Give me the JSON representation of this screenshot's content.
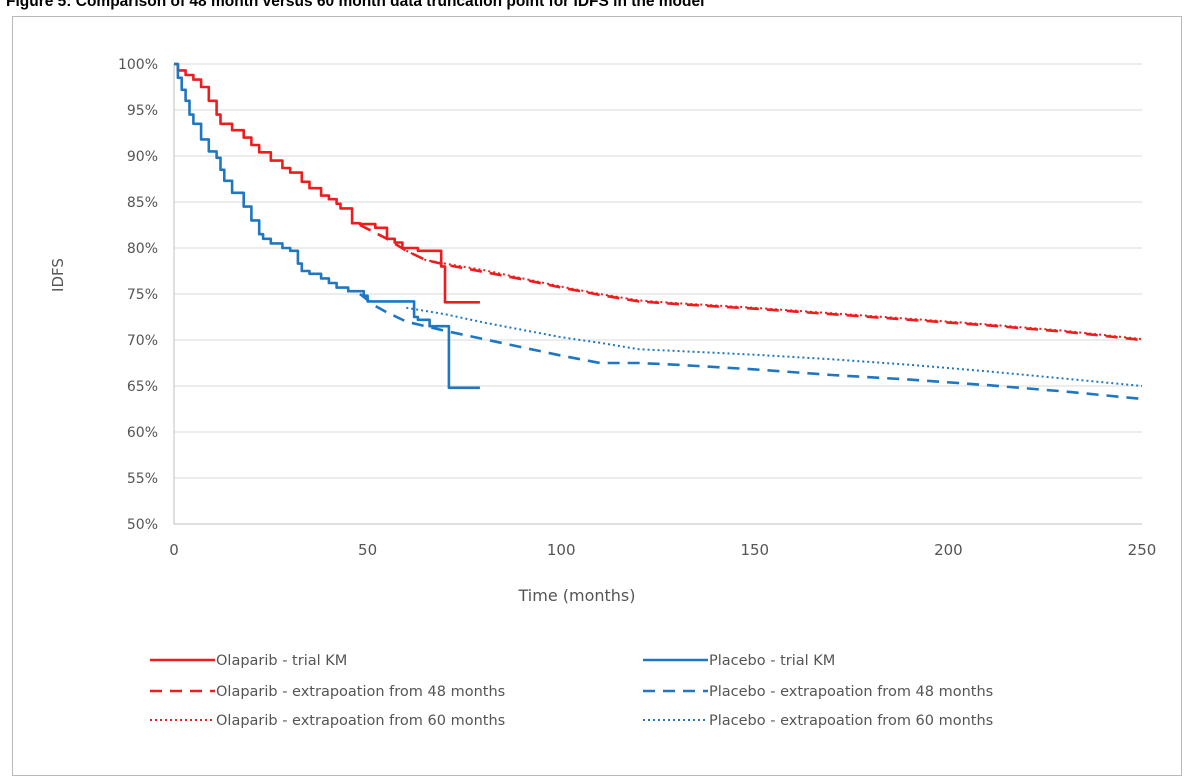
{
  "figure_title": "Figure 5: Comparison of 48 month versus 60 month data truncation point for IDFS in the model",
  "colors": {
    "olaparib": "#ee1c1c",
    "placebo": "#1f77c1",
    "grid": "#d9d9d9",
    "axis_text": "#595959"
  },
  "chart_data": {
    "type": "line",
    "title": "",
    "xlabel": "Time (months)",
    "ylabel": "IDFS",
    "xlim": [
      0,
      250
    ],
    "ylim": [
      0.5,
      1.0
    ],
    "x_ticks": [
      "0",
      "50",
      "100",
      "150",
      "200",
      "250"
    ],
    "y_ticks": [
      "50%",
      "55%",
      "60%",
      "65%",
      "70%",
      "75%",
      "80%",
      "85%",
      "90%",
      "95%",
      "100%"
    ],
    "grid": "horizontal",
    "legend_position": "bottom",
    "series": [
      {
        "name": "Olaparib - trial KM",
        "color": "olaparib",
        "dash": "solid",
        "step": true,
        "x": [
          0,
          1,
          3,
          5,
          7,
          9,
          11,
          12,
          15,
          18,
          20,
          22,
          25,
          28,
          30,
          33,
          35,
          38,
          40,
          42,
          43,
          45,
          46,
          48,
          50,
          52,
          55,
          57,
          59,
          61,
          63,
          65,
          66,
          67,
          68,
          69,
          70,
          72,
          79
        ],
        "y": [
          1.0,
          0.993,
          0.988,
          0.983,
          0.975,
          0.96,
          0.945,
          0.935,
          0.928,
          0.92,
          0.912,
          0.904,
          0.895,
          0.887,
          0.882,
          0.872,
          0.865,
          0.857,
          0.853,
          0.848,
          0.843,
          0.843,
          0.827,
          0.826,
          0.826,
          0.822,
          0.81,
          0.806,
          0.8,
          0.8,
          0.797,
          0.797,
          0.797,
          0.797,
          0.797,
          0.78,
          0.741,
          0.741,
          0.741
        ]
      },
      {
        "name": "Placebo - trial KM",
        "color": "placebo",
        "dash": "solid",
        "step": true,
        "x": [
          0,
          1,
          2,
          3,
          4,
          5,
          7,
          9,
          11,
          12,
          13,
          15,
          18,
          20,
          22,
          23,
          25,
          28,
          30,
          32,
          33,
          35,
          38,
          40,
          42,
          45,
          47,
          49,
          50,
          52,
          55,
          57,
          60,
          62,
          63,
          65,
          66,
          68,
          70,
          71,
          72,
          74,
          79
        ],
        "y": [
          1.0,
          0.985,
          0.972,
          0.96,
          0.945,
          0.935,
          0.918,
          0.905,
          0.898,
          0.885,
          0.873,
          0.86,
          0.845,
          0.83,
          0.815,
          0.81,
          0.805,
          0.8,
          0.797,
          0.783,
          0.775,
          0.772,
          0.767,
          0.762,
          0.757,
          0.753,
          0.753,
          0.748,
          0.742,
          0.742,
          0.742,
          0.742,
          0.742,
          0.725,
          0.722,
          0.722,
          0.715,
          0.715,
          0.715,
          0.648,
          0.648,
          0.648,
          0.648
        ]
      },
      {
        "name": "Olaparib - extrapoation from 48 months",
        "color": "olaparib",
        "dash": "dash",
        "step": false,
        "x": [
          48,
          55,
          60,
          65,
          70,
          80,
          90,
          100,
          110,
          120,
          130,
          150,
          170,
          190,
          210,
          230,
          250
        ],
        "y": [
          0.825,
          0.81,
          0.797,
          0.787,
          0.782,
          0.774,
          0.766,
          0.757,
          0.749,
          0.742,
          0.739,
          0.734,
          0.728,
          0.722,
          0.716,
          0.709,
          0.7
        ]
      },
      {
        "name": "Placebo - extrapoation from 48 months",
        "color": "placebo",
        "dash": "dash",
        "step": false,
        "x": [
          48,
          52,
          55,
          60,
          70,
          80,
          90,
          100,
          110,
          120,
          130,
          150,
          170,
          190,
          210,
          230,
          250
        ],
        "y": [
          0.75,
          0.737,
          0.73,
          0.72,
          0.71,
          0.701,
          0.692,
          0.683,
          0.675,
          0.675,
          0.673,
          0.668,
          0.662,
          0.657,
          0.651,
          0.644,
          0.636
        ]
      },
      {
        "name": "Olaparib - extrapoation from 60 months",
        "color": "olaparib",
        "dash": "dot",
        "step": false,
        "x": [
          60,
          65,
          70,
          80,
          90,
          100,
          110,
          120,
          130,
          150,
          170,
          190,
          210,
          230,
          250
        ],
        "y": [
          0.797,
          0.787,
          0.783,
          0.776,
          0.767,
          0.758,
          0.75,
          0.743,
          0.74,
          0.735,
          0.729,
          0.723,
          0.717,
          0.71,
          0.701
        ]
      },
      {
        "name": "Placebo - extrapoation from 60 months",
        "color": "placebo",
        "dash": "dot",
        "step": false,
        "x": [
          60,
          70,
          80,
          90,
          100,
          110,
          120,
          130,
          150,
          170,
          190,
          210,
          230,
          250
        ],
        "y": [
          0.735,
          0.728,
          0.719,
          0.711,
          0.703,
          0.697,
          0.69,
          0.688,
          0.684,
          0.679,
          0.673,
          0.666,
          0.658,
          0.65
        ]
      }
    ]
  }
}
